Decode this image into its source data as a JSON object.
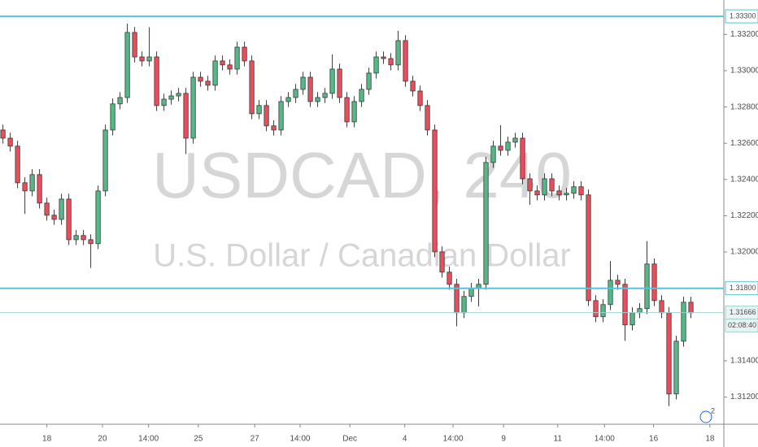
{
  "chart_data": {
    "type": "candlestick",
    "watermark": "USDCAD, 240",
    "watermark_subtitle": "U.S. Dollar / Canadian Dollar",
    "x": [
      0,
      1,
      2,
      3,
      4,
      5,
      6,
      7,
      8,
      9,
      10,
      11,
      12,
      13,
      14,
      15,
      16,
      17,
      18,
      19,
      20,
      21,
      22,
      23,
      24,
      25,
      26,
      27,
      28,
      29,
      30,
      31,
      32,
      33,
      34,
      35,
      36,
      37,
      38,
      39,
      40,
      41,
      42,
      43,
      44,
      45,
      46,
      47,
      48,
      49,
      50,
      51,
      52,
      53,
      54,
      55,
      56,
      57,
      58,
      59,
      60,
      61,
      62,
      63,
      64,
      65,
      66,
      67,
      68,
      69,
      70,
      71,
      72,
      73,
      74,
      75,
      76,
      77,
      78,
      79,
      80,
      81,
      82,
      83,
      84,
      85,
      86,
      87,
      88,
      89,
      90,
      91,
      92,
      93,
      94
    ],
    "open": [
      1.32673,
      1.32628,
      1.32584,
      1.32382,
      1.32337,
      1.32427,
      1.3227,
      1.32203,
      1.3218,
      1.32292,
      1.32068,
      1.32091,
      1.32068,
      1.32046,
      1.32337,
      1.32673,
      1.32817,
      1.32852,
      1.33211,
      1.33076,
      1.33054,
      1.33076,
      1.32808,
      1.32843,
      1.32861,
      1.32875,
      1.32628,
      1.32964,
      1.32942,
      1.3292,
      1.33054,
      1.33032,
      1.33009,
      1.3313,
      1.33054,
      1.32763,
      1.32808,
      1.32696,
      1.32673,
      1.3283,
      1.32852,
      1.32897,
      1.32964,
      1.3283,
      1.32852,
      1.32875,
      1.33009,
      1.32852,
      1.32718,
      1.3283,
      1.32897,
      1.32987,
      1.33076,
      1.33067,
      1.33032,
      1.33166,
      1.32942,
      1.32888,
      1.32808,
      1.32673,
      1.32001,
      1.31889,
      1.31822,
      1.31665,
      1.31755,
      1.318,
      1.31822,
      1.32494,
      1.32584,
      1.32561,
      1.32606,
      1.32628,
      1.32404,
      1.32337,
      1.32315,
      1.32404,
      1.32337,
      1.32315,
      1.32324,
      1.3236,
      1.32315,
      1.31732,
      1.31643,
      1.3171,
      1.31844,
      1.31822,
      1.31598,
      1.31665,
      1.31688,
      1.31934,
      1.31732,
      1.31665,
      1.31217,
      1.31508,
      1.31723
    ],
    "high": [
      1.32703,
      1.32658,
      1.32614,
      1.32412,
      1.32457,
      1.32457,
      1.323,
      1.32233,
      1.32322,
      1.32322,
      1.32121,
      1.32121,
      1.32098,
      1.32367,
      1.32703,
      1.32847,
      1.32882,
      1.3326,
      1.33241,
      1.33106,
      1.3324,
      1.33106,
      1.32873,
      1.32891,
      1.32905,
      1.32905,
      1.32994,
      1.32994,
      1.32972,
      1.33084,
      1.33084,
      1.33062,
      1.3316,
      1.3316,
      1.33084,
      1.32838,
      1.32838,
      1.32726,
      1.3286,
      1.32882,
      1.32927,
      1.32994,
      1.32994,
      1.32882,
      1.32905,
      1.3309,
      1.33039,
      1.32882,
      1.3286,
      1.32927,
      1.33017,
      1.33106,
      1.33106,
      1.33097,
      1.3322,
      1.33196,
      1.32972,
      1.32918,
      1.32838,
      1.32703,
      1.32031,
      1.31919,
      1.31852,
      1.31785,
      1.3183,
      1.31852,
      1.32524,
      1.32614,
      1.327,
      1.32636,
      1.32658,
      1.32658,
      1.32434,
      1.32367,
      1.32434,
      1.32434,
      1.32367,
      1.32354,
      1.3239,
      1.3239,
      1.32345,
      1.31762,
      1.3174,
      1.3195,
      1.31874,
      1.31852,
      1.31695,
      1.31718,
      1.3206,
      1.31964,
      1.31762,
      1.31695,
      1.31538,
      1.31753,
      1.31753
    ],
    "low": [
      1.32598,
      1.32554,
      1.32352,
      1.3221,
      1.32307,
      1.3224,
      1.32173,
      1.3215,
      1.3215,
      1.32038,
      1.32038,
      1.32038,
      1.31912,
      1.32016,
      1.32307,
      1.32643,
      1.32787,
      1.32822,
      1.33046,
      1.33024,
      1.33024,
      1.32778,
      1.32778,
      1.32813,
      1.32831,
      1.3254,
      1.32598,
      1.32912,
      1.3289,
      1.3289,
      1.33002,
      1.32979,
      1.32979,
      1.33024,
      1.32733,
      1.32733,
      1.32666,
      1.32643,
      1.32643,
      1.328,
      1.32822,
      1.32867,
      1.328,
      1.328,
      1.32822,
      1.32845,
      1.32822,
      1.32688,
      1.32688,
      1.328,
      1.32867,
      1.32957,
      1.33037,
      1.33002,
      1.33002,
      1.32912,
      1.32858,
      1.32778,
      1.32643,
      1.31971,
      1.31859,
      1.31792,
      1.3159,
      1.31635,
      1.31725,
      1.317,
      1.31792,
      1.32464,
      1.32531,
      1.32531,
      1.32576,
      1.32374,
      1.3226,
      1.32285,
      1.32285,
      1.32307,
      1.32285,
      1.32285,
      1.32294,
      1.32285,
      1.31702,
      1.31613,
      1.31613,
      1.3168,
      1.31792,
      1.3151,
      1.31568,
      1.31635,
      1.31658,
      1.31702,
      1.31635,
      1.3115,
      1.31187,
      1.31478,
      1.31635
    ],
    "close": [
      1.32628,
      1.32584,
      1.32382,
      1.32337,
      1.32427,
      1.3227,
      1.32203,
      1.3218,
      1.32292,
      1.32068,
      1.32091,
      1.32068,
      1.32046,
      1.32337,
      1.32673,
      1.32817,
      1.32852,
      1.33211,
      1.33076,
      1.33054,
      1.33076,
      1.32808,
      1.32843,
      1.32861,
      1.32875,
      1.32628,
      1.32964,
      1.32942,
      1.3292,
      1.33054,
      1.33032,
      1.33009,
      1.3313,
      1.33054,
      1.32763,
      1.32808,
      1.32696,
      1.32673,
      1.3283,
      1.32852,
      1.32897,
      1.32964,
      1.3283,
      1.32852,
      1.32875,
      1.33009,
      1.32852,
      1.32718,
      1.3283,
      1.32897,
      1.32987,
      1.33076,
      1.33067,
      1.33032,
      1.33166,
      1.32942,
      1.32888,
      1.32808,
      1.32673,
      1.32001,
      1.31889,
      1.31822,
      1.31665,
      1.31755,
      1.318,
      1.31822,
      1.32494,
      1.32584,
      1.32561,
      1.32606,
      1.32628,
      1.32404,
      1.32337,
      1.32315,
      1.32404,
      1.32337,
      1.32315,
      1.32324,
      1.3236,
      1.32315,
      1.31732,
      1.31643,
      1.3171,
      1.31844,
      1.31822,
      1.31598,
      1.31665,
      1.31688,
      1.31934,
      1.31732,
      1.31665,
      1.31217,
      1.31508,
      1.31723,
      1.31665
    ],
    "up_color": "#53b987",
    "down_color": "#eb4d5c",
    "xlim": [
      -0.4,
      98.5
    ],
    "xticks": [
      {
        "value": 6,
        "label": "18"
      },
      {
        "value": 13.6,
        "label": "20"
      },
      {
        "value": 19.9,
        "label": "14:00"
      },
      {
        "value": 26.7,
        "label": "25"
      },
      {
        "value": 34.4,
        "label": "27"
      },
      {
        "value": 40.6,
        "label": "14:00"
      },
      {
        "value": 47.4,
        "label": "Dec"
      },
      {
        "value": 54.9,
        "label": "4"
      },
      {
        "value": 61.5,
        "label": "14:00"
      },
      {
        "value": 68.4,
        "label": "9"
      },
      {
        "value": 75.8,
        "label": "11"
      },
      {
        "value": 82.2,
        "label": "14:00"
      },
      {
        "value": 88.9,
        "label": "16"
      },
      {
        "value": 96.6,
        "label": "18"
      }
    ],
    "ylim": [
      1.3105,
      1.3339
    ],
    "yticks": [
      {
        "value": 1.332,
        "label": "1.33200"
      },
      {
        "value": 1.33,
        "label": "1.33000"
      },
      {
        "value": 1.328,
        "label": "1.32800"
      },
      {
        "value": 1.326,
        "label": "1.32600"
      },
      {
        "value": 1.324,
        "label": "1.32400"
      },
      {
        "value": 1.322,
        "label": "1.32200"
      },
      {
        "value": 1.32,
        "label": "1.32000"
      },
      {
        "value": 1.314,
        "label": "1.31400"
      },
      {
        "value": 1.312,
        "label": "1.31200"
      }
    ],
    "hlines": [
      {
        "value": 1.333,
        "label": "1.33300"
      },
      {
        "value": 1.318,
        "label": "1.31800"
      }
    ],
    "hline_color": "#56c3d6",
    "last_price": 1.31666,
    "countdown": "02:08:40",
    "badge": "2"
  }
}
